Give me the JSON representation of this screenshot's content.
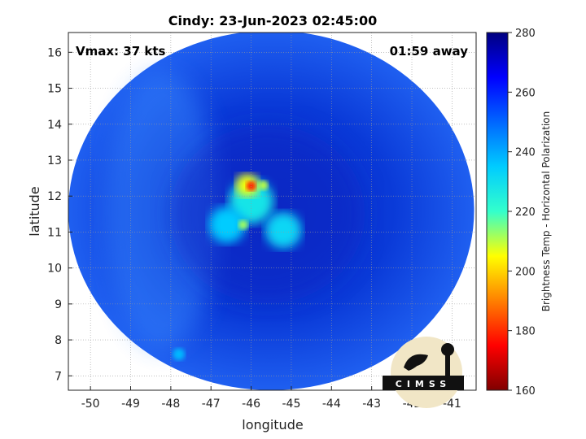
{
  "chart_data": {
    "type": "heatmap",
    "title": "Cindy: 23-Jun-2023 02:45:00",
    "xlabel": "longitude",
    "ylabel": "latitude",
    "xlim": [
      -50.55,
      -40.4
    ],
    "ylim": [
      6.6,
      16.55
    ],
    "x_ticks": [
      -50,
      -49,
      -48,
      -47,
      -46,
      -45,
      -44,
      -43,
      -42,
      -41
    ],
    "y_ticks": [
      7,
      8,
      9,
      10,
      11,
      12,
      13,
      14,
      15,
      16
    ],
    "grid": true,
    "annotations": {
      "top_left": "Vmax: 37 kts",
      "top_right": "01:59 away"
    },
    "colorbar": {
      "label": "Brightness Temp - Horizontal Polarization",
      "range": [
        160,
        280
      ],
      "ticks": [
        160,
        180,
        200,
        220,
        240,
        260,
        280
      ],
      "colormap": "jet"
    },
    "swath": {
      "center_lon": -45.5,
      "center_lat": 11.6,
      "lon_half_width": 5.05,
      "lat_half_height": 5.0
    },
    "features": [
      {
        "lon": -46.0,
        "lat": 11.85,
        "radius": 0.55,
        "value": 228
      },
      {
        "lon": -45.2,
        "lat": 11.05,
        "radius": 0.45,
        "value": 232
      },
      {
        "lon": -46.6,
        "lat": 11.2,
        "radius": 0.45,
        "value": 235
      },
      {
        "lon": -46.1,
        "lat": 12.3,
        "radius": 0.28,
        "value": 205
      },
      {
        "lon": -46.0,
        "lat": 12.28,
        "radius": 0.12,
        "value": 178
      },
      {
        "lon": -45.7,
        "lat": 12.3,
        "radius": 0.12,
        "value": 210
      },
      {
        "lon": -46.2,
        "lat": 11.2,
        "radius": 0.12,
        "value": 212
      },
      {
        "lon": -47.8,
        "lat": 7.6,
        "radius": 0.15,
        "value": 238
      }
    ]
  },
  "logo": {
    "text": "CIMSS"
  }
}
